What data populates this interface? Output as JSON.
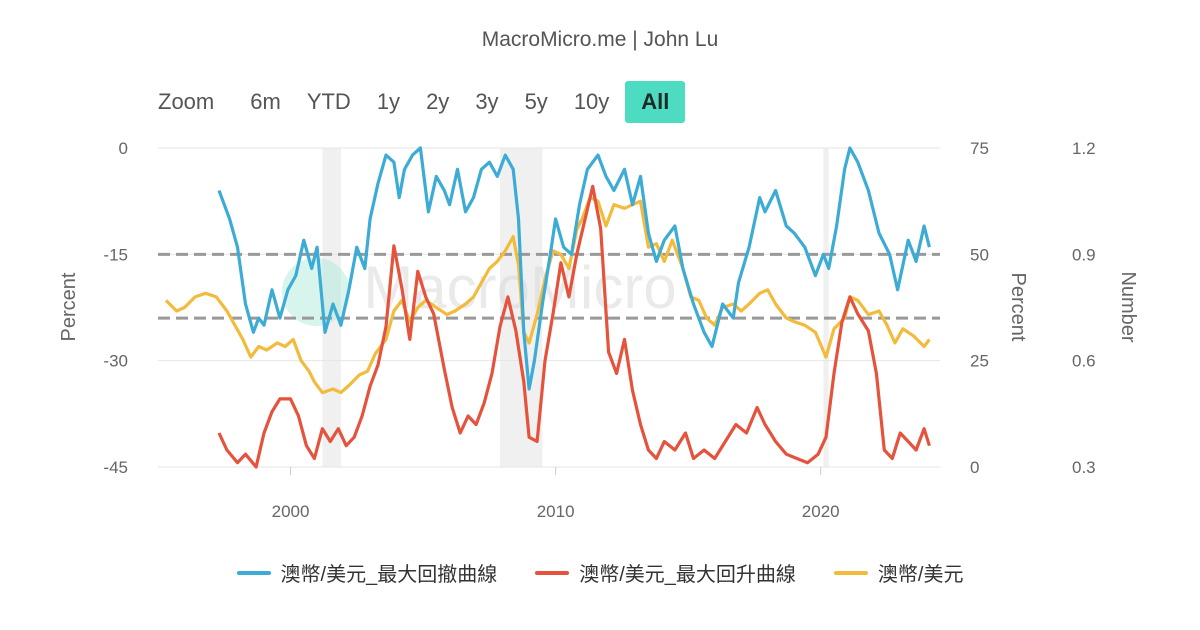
{
  "header": {
    "credit": "MacroMicro.me | John Lu"
  },
  "zoom": {
    "label": "Zoom",
    "buttons": [
      "6m",
      "YTD",
      "1y",
      "2y",
      "3y",
      "5y",
      "10y",
      "All"
    ],
    "active": "All"
  },
  "colors": {
    "drawdown": "#3cabd6",
    "rebound": "#e5533c",
    "audusd": "#f3bb3c",
    "recession_band": "#f0f0f0",
    "ref_line": "#999999",
    "grid": "#e6e6e6"
  },
  "chart_data": {
    "type": "line",
    "watermark": "MacroMicro",
    "x_range": [
      1995,
      2024.5
    ],
    "x_ticks": [
      "2000",
      "2010",
      "2020"
    ],
    "x_tick_values": [
      2000,
      2010,
      2020
    ],
    "axes": {
      "left": {
        "title": "Percent",
        "range": [
          -45,
          0
        ],
        "ticks": [
          "0",
          "-15",
          "-30",
          "-45"
        ],
        "tick_values": [
          0,
          -15,
          -30,
          -45
        ]
      },
      "right1": {
        "title": "Percent",
        "range": [
          0,
          75
        ],
        "ticks": [
          "75",
          "50",
          "25",
          "0"
        ],
        "tick_values": [
          75,
          50,
          25,
          0
        ]
      },
      "right2": {
        "title": "Number",
        "range": [
          0.3,
          1.2
        ],
        "ticks": [
          "1.2",
          "0.9",
          "0.6",
          "0.3"
        ],
        "tick_values": [
          1.2,
          0.9,
          0.6,
          0.3
        ]
      }
    },
    "recessions": [
      [
        2001.2,
        2001.9
      ],
      [
        2007.9,
        2009.5
      ],
      [
        2020.1,
        2020.3
      ]
    ],
    "reference_lines_left": [
      -15,
      -24
    ],
    "series": [
      {
        "name": "澳幣/美元_最大回撤曲線",
        "axis": "left",
        "color": "#3cabd6",
        "points": [
          [
            1997.3,
            -6
          ],
          [
            1997.7,
            -10
          ],
          [
            1998.0,
            -14
          ],
          [
            1998.3,
            -22
          ],
          [
            1998.6,
            -26
          ],
          [
            1998.8,
            -24
          ],
          [
            1999.0,
            -25
          ],
          [
            1999.3,
            -20
          ],
          [
            1999.6,
            -24
          ],
          [
            1999.9,
            -20
          ],
          [
            2000.2,
            -18
          ],
          [
            2000.5,
            -13
          ],
          [
            2000.8,
            -17
          ],
          [
            2001.0,
            -14
          ],
          [
            2001.3,
            -26
          ],
          [
            2001.6,
            -22
          ],
          [
            2001.9,
            -25
          ],
          [
            2002.2,
            -20
          ],
          [
            2002.5,
            -14
          ],
          [
            2002.8,
            -17
          ],
          [
            2003.0,
            -10
          ],
          [
            2003.3,
            -5
          ],
          [
            2003.6,
            -1
          ],
          [
            2003.9,
            -2
          ],
          [
            2004.1,
            -7
          ],
          [
            2004.3,
            -3
          ],
          [
            2004.6,
            -1
          ],
          [
            2004.9,
            0
          ],
          [
            2005.2,
            -9
          ],
          [
            2005.5,
            -4
          ],
          [
            2005.8,
            -6
          ],
          [
            2006.0,
            -8
          ],
          [
            2006.3,
            -3
          ],
          [
            2006.6,
            -9
          ],
          [
            2006.9,
            -7
          ],
          [
            2007.2,
            -3
          ],
          [
            2007.5,
            -2
          ],
          [
            2007.8,
            -4
          ],
          [
            2008.1,
            -1
          ],
          [
            2008.4,
            -3
          ],
          [
            2008.6,
            -10
          ],
          [
            2008.8,
            -26
          ],
          [
            2009.0,
            -34
          ],
          [
            2009.2,
            -30
          ],
          [
            2009.5,
            -22
          ],
          [
            2009.8,
            -15
          ],
          [
            2010.0,
            -10
          ],
          [
            2010.3,
            -14
          ],
          [
            2010.6,
            -15
          ],
          [
            2010.9,
            -8
          ],
          [
            2011.2,
            -3
          ],
          [
            2011.6,
            -1
          ],
          [
            2011.9,
            -4
          ],
          [
            2012.2,
            -6
          ],
          [
            2012.6,
            -3
          ],
          [
            2012.9,
            -8
          ],
          [
            2013.2,
            -4
          ],
          [
            2013.5,
            -12
          ],
          [
            2013.8,
            -16
          ],
          [
            2014.1,
            -13
          ],
          [
            2014.5,
            -11
          ],
          [
            2014.8,
            -17
          ],
          [
            2015.2,
            -22
          ],
          [
            2015.6,
            -26
          ],
          [
            2015.9,
            -28
          ],
          [
            2016.3,
            -22
          ],
          [
            2016.7,
            -24
          ],
          [
            2016.9,
            -19
          ],
          [
            2017.3,
            -14
          ],
          [
            2017.7,
            -7
          ],
          [
            2017.9,
            -9
          ],
          [
            2018.3,
            -6
          ],
          [
            2018.7,
            -11
          ],
          [
            2019.0,
            -12
          ],
          [
            2019.4,
            -14
          ],
          [
            2019.8,
            -18
          ],
          [
            2020.1,
            -15
          ],
          [
            2020.3,
            -17
          ],
          [
            2020.6,
            -11
          ],
          [
            2020.9,
            -3
          ],
          [
            2021.1,
            0
          ],
          [
            2021.4,
            -2
          ],
          [
            2021.8,
            -6
          ],
          [
            2022.2,
            -12
          ],
          [
            2022.6,
            -15
          ],
          [
            2022.9,
            -20
          ],
          [
            2023.3,
            -13
          ],
          [
            2023.6,
            -16
          ],
          [
            2023.9,
            -11
          ],
          [
            2024.1,
            -14
          ]
        ]
      },
      {
        "name": "澳幣/美元_最大回升曲線",
        "axis": "right1",
        "color": "#e5533c",
        "points": [
          [
            1997.3,
            8
          ],
          [
            1997.6,
            4
          ],
          [
            1998.0,
            1
          ],
          [
            1998.3,
            3
          ],
          [
            1998.7,
            0
          ],
          [
            1999.0,
            8
          ],
          [
            1999.3,
            13
          ],
          [
            1999.6,
            16
          ],
          [
            2000.0,
            16
          ],
          [
            2000.3,
            12
          ],
          [
            2000.6,
            5
          ],
          [
            2000.9,
            2
          ],
          [
            2001.2,
            9
          ],
          [
            2001.5,
            6
          ],
          [
            2001.8,
            9
          ],
          [
            2002.1,
            5
          ],
          [
            2002.4,
            7
          ],
          [
            2002.7,
            12
          ],
          [
            2003.0,
            19
          ],
          [
            2003.3,
            24
          ],
          [
            2003.6,
            33
          ],
          [
            2003.9,
            52
          ],
          [
            2004.2,
            42
          ],
          [
            2004.5,
            30
          ],
          [
            2004.8,
            46
          ],
          [
            2005.1,
            40
          ],
          [
            2005.4,
            36
          ],
          [
            2005.8,
            23
          ],
          [
            2006.1,
            14
          ],
          [
            2006.4,
            8
          ],
          [
            2006.7,
            12
          ],
          [
            2007.0,
            10
          ],
          [
            2007.3,
            15
          ],
          [
            2007.6,
            22
          ],
          [
            2007.9,
            33
          ],
          [
            2008.2,
            40
          ],
          [
            2008.5,
            32
          ],
          [
            2008.8,
            20
          ],
          [
            2009.0,
            7
          ],
          [
            2009.3,
            6
          ],
          [
            2009.6,
            25
          ],
          [
            2009.9,
            36
          ],
          [
            2010.2,
            48
          ],
          [
            2010.5,
            40
          ],
          [
            2010.8,
            50
          ],
          [
            2011.1,
            58
          ],
          [
            2011.4,
            66
          ],
          [
            2011.7,
            56
          ],
          [
            2012.0,
            27
          ],
          [
            2012.3,
            22
          ],
          [
            2012.6,
            30
          ],
          [
            2012.9,
            18
          ],
          [
            2013.2,
            10
          ],
          [
            2013.5,
            4
          ],
          [
            2013.8,
            2
          ],
          [
            2014.1,
            6
          ],
          [
            2014.5,
            4
          ],
          [
            2014.9,
            8
          ],
          [
            2015.2,
            2
          ],
          [
            2015.6,
            4
          ],
          [
            2016.0,
            2
          ],
          [
            2016.4,
            6
          ],
          [
            2016.8,
            10
          ],
          [
            2017.2,
            8
          ],
          [
            2017.6,
            14
          ],
          [
            2017.9,
            10
          ],
          [
            2018.3,
            6
          ],
          [
            2018.7,
            3
          ],
          [
            2019.1,
            2
          ],
          [
            2019.5,
            1
          ],
          [
            2019.9,
            3
          ],
          [
            2020.2,
            7
          ],
          [
            2020.5,
            22
          ],
          [
            2020.8,
            34
          ],
          [
            2021.1,
            40
          ],
          [
            2021.4,
            36
          ],
          [
            2021.8,
            32
          ],
          [
            2022.1,
            22
          ],
          [
            2022.4,
            4
          ],
          [
            2022.7,
            2
          ],
          [
            2023.0,
            8
          ],
          [
            2023.3,
            6
          ],
          [
            2023.6,
            4
          ],
          [
            2023.9,
            9
          ],
          [
            2024.1,
            5
          ]
        ]
      },
      {
        "name": "澳幣/美元",
        "axis": "right2",
        "color": "#f3bb3c",
        "points": [
          [
            1995.3,
            0.77
          ],
          [
            1995.7,
            0.74
          ],
          [
            1996.0,
            0.75
          ],
          [
            1996.4,
            0.78
          ],
          [
            1996.8,
            0.79
          ],
          [
            1997.2,
            0.78
          ],
          [
            1997.6,
            0.74
          ],
          [
            1997.9,
            0.7
          ],
          [
            1998.2,
            0.66
          ],
          [
            1998.5,
            0.61
          ],
          [
            1998.8,
            0.64
          ],
          [
            1999.1,
            0.63
          ],
          [
            1999.5,
            0.65
          ],
          [
            1999.8,
            0.64
          ],
          [
            2000.1,
            0.66
          ],
          [
            2000.4,
            0.6
          ],
          [
            2000.7,
            0.57
          ],
          [
            2000.9,
            0.54
          ],
          [
            2001.2,
            0.51
          ],
          [
            2001.6,
            0.52
          ],
          [
            2001.9,
            0.51
          ],
          [
            2002.2,
            0.53
          ],
          [
            2002.6,
            0.56
          ],
          [
            2002.9,
            0.57
          ],
          [
            2003.2,
            0.62
          ],
          [
            2003.6,
            0.66
          ],
          [
            2003.9,
            0.74
          ],
          [
            2004.2,
            0.77
          ],
          [
            2004.5,
            0.71
          ],
          [
            2004.8,
            0.75
          ],
          [
            2005.1,
            0.77
          ],
          [
            2005.5,
            0.75
          ],
          [
            2005.9,
            0.73
          ],
          [
            2006.2,
            0.74
          ],
          [
            2006.6,
            0.76
          ],
          [
            2006.9,
            0.78
          ],
          [
            2007.2,
            0.82
          ],
          [
            2007.5,
            0.86
          ],
          [
            2007.8,
            0.88
          ],
          [
            2008.1,
            0.91
          ],
          [
            2008.4,
            0.95
          ],
          [
            2008.6,
            0.87
          ],
          [
            2008.8,
            0.68
          ],
          [
            2009.0,
            0.65
          ],
          [
            2009.3,
            0.73
          ],
          [
            2009.6,
            0.83
          ],
          [
            2009.9,
            0.91
          ],
          [
            2010.2,
            0.9
          ],
          [
            2010.5,
            0.86
          ],
          [
            2010.8,
            0.97
          ],
          [
            2011.0,
            1.0
          ],
          [
            2011.3,
            1.06
          ],
          [
            2011.6,
            1.05
          ],
          [
            2011.9,
            0.98
          ],
          [
            2012.2,
            1.04
          ],
          [
            2012.6,
            1.03
          ],
          [
            2012.9,
            1.04
          ],
          [
            2013.2,
            1.05
          ],
          [
            2013.5,
            0.92
          ],
          [
            2013.8,
            0.93
          ],
          [
            2014.1,
            0.88
          ],
          [
            2014.4,
            0.94
          ],
          [
            2014.8,
            0.86
          ],
          [
            2015.1,
            0.78
          ],
          [
            2015.4,
            0.77
          ],
          [
            2015.7,
            0.72
          ],
          [
            2016.0,
            0.7
          ],
          [
            2016.3,
            0.75
          ],
          [
            2016.7,
            0.76
          ],
          [
            2017.0,
            0.74
          ],
          [
            2017.3,
            0.76
          ],
          [
            2017.7,
            0.79
          ],
          [
            2018.0,
            0.8
          ],
          [
            2018.3,
            0.76
          ],
          [
            2018.7,
            0.72
          ],
          [
            2019.0,
            0.71
          ],
          [
            2019.4,
            0.7
          ],
          [
            2019.8,
            0.68
          ],
          [
            2020.2,
            0.61
          ],
          [
            2020.5,
            0.69
          ],
          [
            2020.9,
            0.72
          ],
          [
            2021.1,
            0.78
          ],
          [
            2021.4,
            0.77
          ],
          [
            2021.8,
            0.73
          ],
          [
            2022.2,
            0.74
          ],
          [
            2022.5,
            0.7
          ],
          [
            2022.8,
            0.65
          ],
          [
            2023.1,
            0.69
          ],
          [
            2023.5,
            0.67
          ],
          [
            2023.9,
            0.64
          ],
          [
            2024.1,
            0.66
          ]
        ]
      }
    ]
  }
}
